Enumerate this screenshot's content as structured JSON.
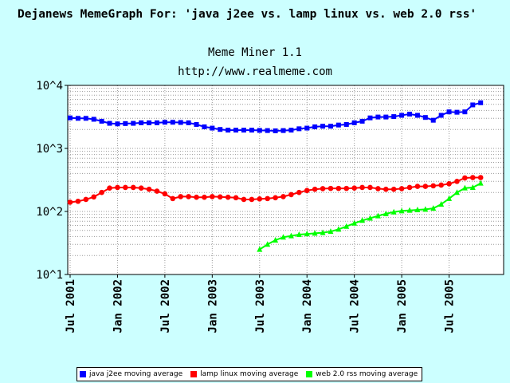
{
  "page": {
    "title": "Dejanews MemeGraph For: 'java j2ee vs. lamp linux vs. web 2.0 rss'",
    "subtitle": "Meme Miner 1.1",
    "url": "http://www.realmeme.com"
  },
  "chart_data": {
    "type": "line",
    "title": "Dejanews MemeGraph For: 'java j2ee vs. lamp linux vs. web 2.0 rss'",
    "xlabel": "",
    "ylabel": "",
    "yscale": "log",
    "ylim": [
      10,
      10000
    ],
    "y_ticks": [
      {
        "value": 10,
        "label": "10^1"
      },
      {
        "value": 100,
        "label": "10^2"
      },
      {
        "value": 1000,
        "label": "10^3"
      },
      {
        "value": 10000,
        "label": "10^4"
      }
    ],
    "x_range": [
      0,
      54
    ],
    "x_ticks": [
      {
        "index": 0,
        "label": "Jul 2001"
      },
      {
        "index": 6,
        "label": "Jan 2002"
      },
      {
        "index": 12,
        "label": "Jul 2002"
      },
      {
        "index": 18,
        "label": "Jan 2003"
      },
      {
        "index": 24,
        "label": "Jul 2003"
      },
      {
        "index": 30,
        "label": "Jan 2004"
      },
      {
        "index": 36,
        "label": "Jul 2004"
      },
      {
        "index": 42,
        "label": "Jan 2005"
      },
      {
        "index": 48,
        "label": "Jul 2005"
      }
    ],
    "grid": true,
    "legend_position": "bottom",
    "series": [
      {
        "name": "java j2ee moving average",
        "color": "#0000ff",
        "marker": "square",
        "start_index": 0,
        "values": [
          3050,
          3000,
          3000,
          2900,
          2700,
          2500,
          2450,
          2480,
          2500,
          2550,
          2550,
          2550,
          2600,
          2600,
          2580,
          2550,
          2400,
          2200,
          2100,
          2000,
          1950,
          1950,
          1950,
          1950,
          1930,
          1920,
          1900,
          1920,
          1950,
          2050,
          2100,
          2200,
          2250,
          2250,
          2350,
          2400,
          2550,
          2700,
          3050,
          3150,
          3150,
          3200,
          3350,
          3500,
          3350,
          3100,
          2800,
          3350,
          3800,
          3750,
          3800,
          4900,
          5300
        ]
      },
      {
        "name": "lamp linux moving average",
        "color": "#ff0000",
        "marker": "circle",
        "start_index": 0,
        "values": [
          140,
          145,
          155,
          170,
          200,
          235,
          240,
          240,
          240,
          235,
          225,
          210,
          190,
          160,
          172,
          172,
          168,
          168,
          172,
          170,
          168,
          165,
          155,
          155,
          158,
          160,
          165,
          172,
          185,
          200,
          215,
          225,
          230,
          232,
          232,
          232,
          235,
          240,
          240,
          230,
          225,
          225,
          230,
          240,
          250,
          250,
          255,
          262,
          275,
          300,
          340,
          345,
          345
        ]
      },
      {
        "name": "web 2.0 rss moving average",
        "color": "#00ff00",
        "marker": "triangle",
        "start_index": 24,
        "values": [
          25,
          30,
          35,
          39,
          41,
          43,
          44,
          45,
          46,
          48,
          52,
          58,
          65,
          72,
          78,
          85,
          92,
          98,
          102,
          104,
          106,
          108,
          112,
          130,
          160,
          200,
          235,
          240,
          280
        ]
      }
    ]
  }
}
